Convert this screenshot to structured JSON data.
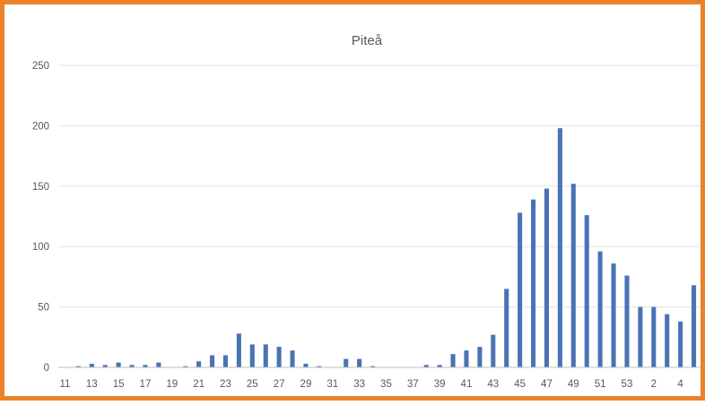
{
  "chart_data": {
    "type": "bar",
    "title": "Piteå",
    "xlabel": "",
    "ylabel": "",
    "ylim": [
      0,
      250
    ],
    "yticks": [
      0,
      50,
      100,
      150,
      200,
      250
    ],
    "grid": true,
    "legend": "none",
    "bar_color": "#4a73b5",
    "border_color": "#e8832a",
    "categories": [
      "11",
      "12",
      "13",
      "14",
      "15",
      "16",
      "17",
      "18",
      "19",
      "20",
      "21",
      "22",
      "23",
      "24",
      "25",
      "26",
      "27",
      "28",
      "29",
      "30",
      "31",
      "32",
      "33",
      "34",
      "35",
      "36",
      "37",
      "38",
      "39",
      "40",
      "41",
      "42",
      "43",
      "44",
      "45",
      "46",
      "47",
      "48",
      "49",
      "50",
      "51",
      "52",
      "53",
      "1",
      "2",
      "3",
      "4",
      "5"
    ],
    "tick_labels": [
      "11",
      "13",
      "15",
      "17",
      "19",
      "21",
      "23",
      "25",
      "27",
      "29",
      "31",
      "33",
      "35",
      "37",
      "39",
      "41",
      "43",
      "45",
      "47",
      "49",
      "51",
      "53",
      "2",
      "4"
    ],
    "values": [
      0,
      1,
      3,
      2,
      4,
      2,
      2,
      4,
      0,
      1,
      5,
      10,
      10,
      28,
      19,
      19,
      17,
      14,
      3,
      1,
      0,
      7,
      7,
      1,
      0,
      0,
      0,
      2,
      2,
      11,
      14,
      17,
      27,
      65,
      128,
      139,
      148,
      198,
      152,
      126,
      96,
      86,
      76,
      50,
      50,
      44,
      38,
      68
    ]
  }
}
